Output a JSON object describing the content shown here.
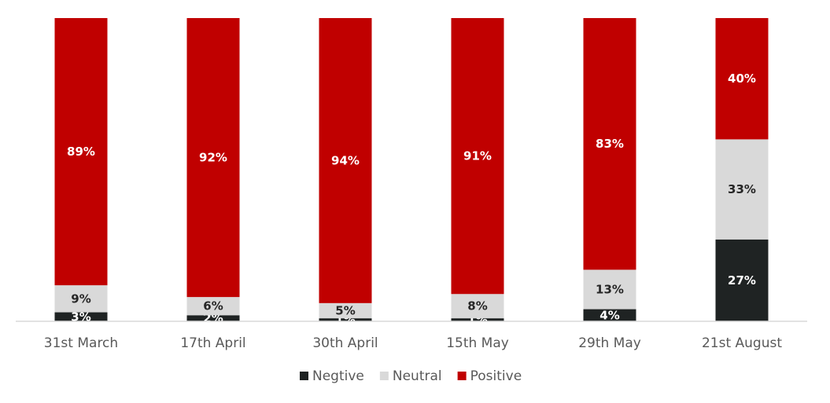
{
  "chart_data": {
    "type": "bar",
    "stacked": true,
    "categories": [
      "31st March",
      "17th April",
      "30th April",
      "15th May",
      "29th May",
      "21st August"
    ],
    "series": [
      {
        "name": "Negtive",
        "color": "#1f2323",
        "label_color": "#ffffff",
        "values": [
          3,
          2,
          1,
          1,
          4,
          27
        ],
        "labels": [
          "3%",
          "2%",
          "1%",
          "1%",
          "4%",
          "27%"
        ]
      },
      {
        "name": "Neutral",
        "color": "#d9d9d9",
        "label_color": "#262626",
        "values": [
          9,
          6,
          5,
          8,
          13,
          33
        ],
        "labels": [
          "9%",
          "6%",
          "5%",
          "8%",
          "13%",
          "33%"
        ]
      },
      {
        "name": "Positive",
        "color": "#c00000",
        "label_color": "#ffffff",
        "values": [
          89,
          92,
          94,
          91,
          83,
          40
        ],
        "labels": [
          "89%",
          "92%",
          "94%",
          "91%",
          "83%",
          "40%"
        ]
      }
    ],
    "ylim": [
      0,
      100
    ],
    "grid": false,
    "legend_position": "bottom",
    "title": "",
    "xlabel": "",
    "ylabel": ""
  }
}
